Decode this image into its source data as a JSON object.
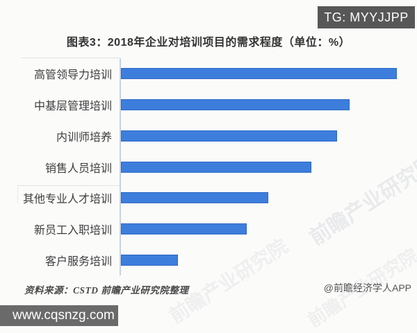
{
  "overlays": {
    "tg_badge": "TG: MYYJJPP",
    "tg_badge_bg": "#575757",
    "site_badge": "www.cqsnzg.com",
    "site_badge_bg": "#6a6a6a"
  },
  "chart_data": {
    "type": "bar",
    "orientation": "horizontal",
    "title": "图表3：2018年企业对培训项目的需求程度（单位：%）",
    "categories": [
      "高管领导力培训",
      "中基层管理培训",
      "内训师培养",
      "销售人员培训",
      "其他专业人才培训",
      "新员工入职培训",
      "客户服务培训"
    ],
    "values": [
      64,
      53,
      50,
      44,
      34,
      29,
      13
    ],
    "unit": "%",
    "xlim": [
      0,
      68
    ],
    "xlabel": "",
    "ylabel": "",
    "grid": false,
    "legend": "none",
    "value_axis_labels_visible": false,
    "bar_color": "#3d7edc",
    "bar_border_color": "#2e68c4",
    "axis_line_color": "#c6d2e2"
  },
  "footer": {
    "source": "资料来源：CSTD  前瞻产业研究院整理",
    "credit": "@前瞻经济学人APP"
  },
  "watermark": {
    "text": "前瞻产业研究院"
  }
}
